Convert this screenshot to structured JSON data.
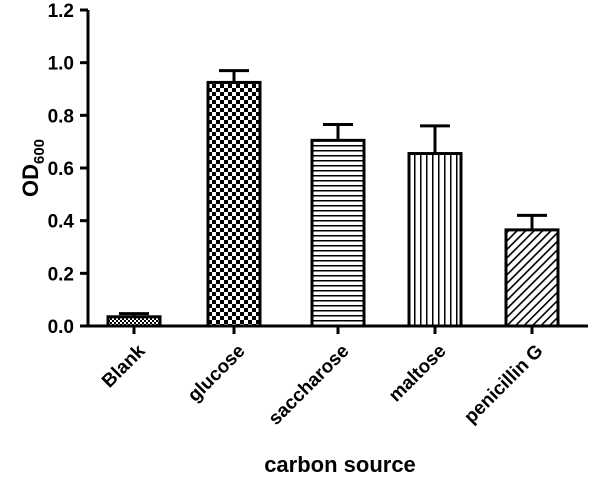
{
  "chart_data": {
    "type": "bar",
    "categories": [
      "Blank",
      "glucose",
      "saccharose",
      "maltose",
      "penicillin G"
    ],
    "values": [
      0.035,
      0.925,
      0.705,
      0.655,
      0.365
    ],
    "errors": [
      0.012,
      0.045,
      0.06,
      0.105,
      0.055
    ],
    "patterns": [
      "checker-fine",
      "checker",
      "horizontal-lines",
      "vertical-lines",
      "diagonal-lines"
    ],
    "ylim": [
      0,
      1.2
    ],
    "yticks": [
      "0.0",
      "0.2",
      "0.4",
      "0.6",
      "0.8",
      "1.0",
      "1.2"
    ],
    "xlabel": "carbon source",
    "ylabel": {
      "main": "OD",
      "sub": "600"
    },
    "grid": false,
    "colors": {
      "bar_fill": "#ffffff",
      "pattern": "#000000",
      "axis": "#000000"
    }
  }
}
